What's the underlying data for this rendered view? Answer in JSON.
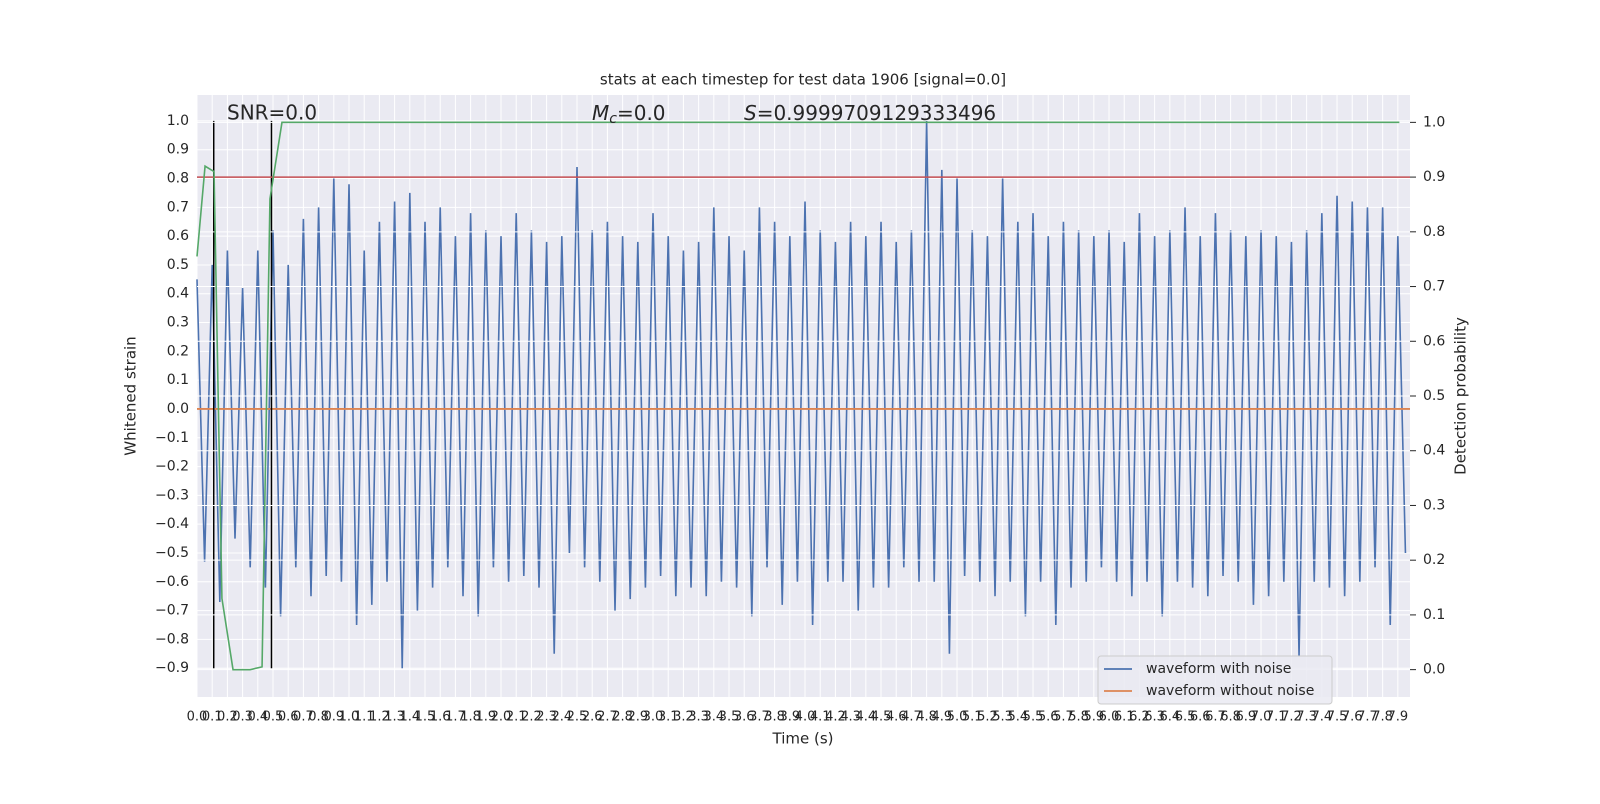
{
  "chart_data": {
    "type": "line",
    "title": "stats at each timestep for test data 1906 [signal=0.0]",
    "xlabel": "Time (s)",
    "ylabel": "Whitened strain",
    "y2label": "Detection probability",
    "annotations": {
      "snr": "SNR=0.0",
      "mc_symbol": "M",
      "mc_subscript": "c",
      "mc_text": "=0.0",
      "s_symbol": "S",
      "s_text": "=0.9999709129333496"
    },
    "xlim": [
      0,
      7.98
    ],
    "ylim": [
      -1.0,
      1.09
    ],
    "y2lim": [
      -0.05,
      1.05
    ],
    "grid": true,
    "legend": "lower right",
    "xticks": [
      {
        "value": 0,
        "label": "0.0"
      },
      0.1,
      0.2,
      0.3,
      0.4,
      0.5,
      0.6,
      0.7,
      0.8,
      0.9,
      {
        "value": 1,
        "label": "1.0"
      },
      1.1,
      1.2,
      1.3,
      1.4,
      1.5,
      1.6,
      1.7,
      1.8,
      1.9,
      {
        "value": 2,
        "label": "2.0"
      },
      2.1,
      2.2,
      2.3,
      2.4,
      2.5,
      2.6,
      2.7,
      2.8,
      2.9,
      {
        "value": 3,
        "label": "3.0"
      },
      3.1,
      3.2,
      3.3,
      3.4,
      3.5,
      3.6,
      3.7,
      3.8,
      3.9,
      {
        "value": 4,
        "label": "4.0"
      },
      4.1,
      4.2,
      4.3,
      4.4,
      4.5,
      4.6,
      4.7,
      4.8,
      4.9,
      {
        "value": 5,
        "label": "5.0"
      },
      5.1,
      5.2,
      5.3,
      5.4,
      5.5,
      5.6,
      5.7,
      5.8,
      5.9,
      {
        "value": 6,
        "label": "6.0"
      },
      6.1,
      6.2,
      6.3,
      6.4,
      6.5,
      6.6,
      6.7,
      6.8,
      6.9,
      {
        "value": 7,
        "label": "7.0"
      },
      7.1,
      7.2,
      7.3,
      7.4,
      7.5,
      7.6,
      7.7,
      7.8,
      7.9
    ],
    "yticks": [
      {
        "value": 1.0,
        "label": "1.0"
      },
      0.9,
      0.8,
      0.7,
      0.6,
      0.5,
      0.4,
      0.3,
      0.2,
      0.1,
      {
        "value": 0,
        "label": "0.0"
      },
      {
        "value": -0.1,
        "label": "−0.1"
      },
      {
        "value": -0.2,
        "label": "−0.2"
      },
      {
        "value": -0.3,
        "label": "−0.3"
      },
      {
        "value": -0.4,
        "label": "−0.4"
      },
      {
        "value": -0.5,
        "label": "−0.5"
      },
      {
        "value": -0.6,
        "label": "−0.6"
      },
      {
        "value": -0.7,
        "label": "−0.7"
      },
      {
        "value": -0.8,
        "label": "−0.8"
      },
      {
        "value": -0.9,
        "label": "−0.9"
      }
    ],
    "y2ticks": [
      {
        "value": 1.0,
        "label": "1.0"
      },
      0.9,
      0.8,
      0.7,
      0.6,
      0.5,
      0.4,
      0.3,
      0.2,
      0.1,
      {
        "value": 0,
        "label": "0.0"
      }
    ],
    "series": [
      {
        "name": "waveform with noise",
        "color": "#4c72b0",
        "x": [
          0,
          0.05,
          0.1,
          0.15,
          0.2,
          0.25,
          0.3,
          0.35,
          0.4,
          0.45,
          0.5,
          0.55,
          0.6,
          0.65,
          0.7,
          0.75,
          0.8,
          0.85,
          0.9,
          0.95,
          1,
          1.05,
          1.1,
          1.15,
          1.2,
          1.25,
          1.3,
          1.35,
          1.4,
          1.45,
          1.5,
          1.55,
          1.6,
          1.65,
          1.7,
          1.75,
          1.8,
          1.85,
          1.9,
          1.95,
          2,
          2.05,
          2.1,
          2.15,
          2.2,
          2.25,
          2.3,
          2.35,
          2.4,
          2.45,
          2.5,
          2.55,
          2.6,
          2.65,
          2.7,
          2.75,
          2.8,
          2.85,
          2.9,
          2.95,
          3,
          3.05,
          3.1,
          3.15,
          3.2,
          3.25,
          3.3,
          3.35,
          3.4,
          3.45,
          3.5,
          3.55,
          3.6,
          3.65,
          3.7,
          3.75,
          3.8,
          3.85,
          3.9,
          3.95,
          4,
          4.05,
          4.1,
          4.15,
          4.2,
          4.25,
          4.3,
          4.35,
          4.4,
          4.45,
          4.5,
          4.55,
          4.6,
          4.65,
          4.7,
          4.75,
          4.8,
          4.85,
          4.9,
          4.95,
          5,
          5.05,
          5.1,
          5.15,
          5.2,
          5.25,
          5.3,
          5.35,
          5.4,
          5.45,
          5.5,
          5.55,
          5.6,
          5.65,
          5.7,
          5.75,
          5.8,
          5.85,
          5.9,
          5.95,
          6,
          6.05,
          6.1,
          6.15,
          6.2,
          6.25,
          6.3,
          6.35,
          6.4,
          6.45,
          6.5,
          6.55,
          6.6,
          6.65,
          6.7,
          6.75,
          6.8,
          6.85,
          6.9,
          6.95,
          7,
          7.05,
          7.1,
          7.15,
          7.2,
          7.25,
          7.3,
          7.35,
          7.4,
          7.45,
          7.5,
          7.55,
          7.6,
          7.65,
          7.7,
          7.75,
          7.8,
          7.85,
          7.9,
          7.95
        ],
        "values": [
          0.45,
          -0.53,
          0.5,
          -0.67,
          0.55,
          -0.45,
          0.42,
          -0.55,
          0.55,
          -0.62,
          0.62,
          -0.72,
          0.5,
          -0.55,
          0.66,
          -0.65,
          0.7,
          -0.58,
          0.8,
          -0.6,
          0.78,
          -0.75,
          0.55,
          -0.68,
          0.65,
          -0.6,
          0.72,
          -0.9,
          0.75,
          -0.7,
          0.65,
          -0.62,
          0.7,
          -0.55,
          0.6,
          -0.65,
          0.68,
          -0.72,
          0.62,
          -0.55,
          0.6,
          -0.6,
          0.68,
          -0.58,
          0.62,
          -0.62,
          0.58,
          -0.85,
          0.6,
          -0.5,
          0.84,
          -0.55,
          0.62,
          -0.6,
          0.65,
          -0.7,
          0.6,
          -0.66,
          0.58,
          -0.62,
          0.68,
          -0.58,
          0.6,
          -0.65,
          0.55,
          -0.62,
          0.58,
          -0.65,
          0.7,
          -0.6,
          0.6,
          -0.62,
          0.55,
          -0.72,
          0.7,
          -0.55,
          0.65,
          -0.68,
          0.6,
          -0.6,
          0.72,
          -0.75,
          0.62,
          -0.6,
          0.58,
          -0.6,
          0.65,
          -0.7,
          0.6,
          -0.62,
          0.65,
          -0.62,
          0.58,
          -0.55,
          0.62,
          -0.6,
          1.0,
          -0.6,
          0.83,
          -0.85,
          0.8,
          -0.58,
          0.62,
          -0.6,
          0.6,
          -0.65,
          0.8,
          -0.6,
          0.65,
          -0.72,
          0.68,
          -0.6,
          0.6,
          -0.75,
          0.65,
          -0.62,
          0.62,
          -0.6,
          0.6,
          -0.55,
          0.62,
          -0.6,
          0.58,
          -0.65,
          0.68,
          -0.6,
          0.6,
          -0.72,
          0.62,
          -0.6,
          0.7,
          -0.62,
          0.6,
          -0.65,
          0.68,
          -0.58,
          0.62,
          -0.6,
          0.6,
          -0.68,
          0.62,
          -0.65,
          0.6,
          -0.6,
          0.58,
          -0.86,
          0.62,
          -0.6,
          0.68,
          -0.62,
          0.74,
          -0.65,
          0.72,
          -0.6,
          0.7,
          -0.55,
          0.7,
          -0.75,
          0.6,
          -0.5
        ]
      },
      {
        "name": "waveform without noise",
        "color": "#dd8452",
        "x": [
          0,
          7.98
        ],
        "values": [
          0,
          0
        ]
      }
    ],
    "detection": {
      "color": "#55a868",
      "axis": "y2",
      "x": [
        0,
        0.053,
        0.112,
        0.164,
        0.237,
        0.349,
        0.428,
        0.48,
        0.559,
        7.91
      ],
      "values": [
        0.755,
        0.92,
        0.91,
        0.13,
        0,
        0,
        0.005,
        0.86,
        1.0,
        1.0
      ]
    },
    "threshold": {
      "y": 0.9,
      "axis": "y2",
      "color": "#c44e52"
    },
    "vlines": {
      "x": [
        0.11,
        0.49
      ],
      "ymin": -0.9,
      "ymax": 1.0,
      "color": "#000000"
    }
  }
}
